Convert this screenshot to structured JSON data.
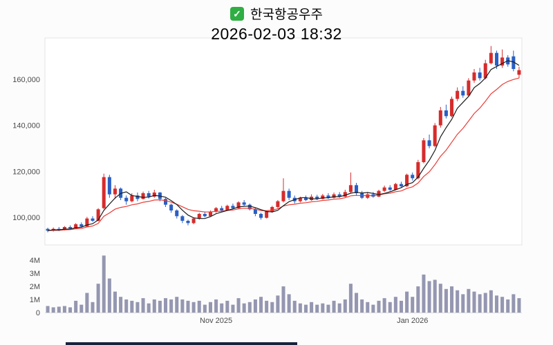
{
  "title": {
    "checkbox_state": "checked",
    "stock_name": "한국항공우주",
    "datetime": "2026-02-03 18:32"
  },
  "colors": {
    "up": "#d62c2c",
    "down": "#2a5fc4",
    "volume": "#9597b1",
    "ma_short": "#1a1a1a",
    "ma_long": "#ea3b34",
    "axis_text": "#4a4a4a",
    "plot_border": "#e3e3e3",
    "checkbox_green": "#2fae43",
    "bottom_strip": "#17223b",
    "plot_background": "#ffffff"
  },
  "chart_data": {
    "type": "candlestick_with_volume",
    "title": "한국항공우주",
    "timestamp": "2026-02-03 18:32",
    "legend_position": "none",
    "grid": false,
    "y_axis": {
      "ticks": [
        100000,
        120000,
        140000,
        160000
      ],
      "labels": [
        "100,000",
        "120,000",
        "140,000",
        "160,000"
      ],
      "min": 88000,
      "max": 178000
    },
    "volume_axis": {
      "ticks": [
        0,
        1,
        2,
        3,
        4
      ],
      "labels": [
        "0",
        "1M",
        "2M",
        "3M",
        "4M"
      ],
      "unit": "millions"
    },
    "x_axis": {
      "tick_indices": [
        30,
        65
      ],
      "tick_labels": [
        "Nov 2025",
        "Jan 2026"
      ]
    },
    "ma_short_window": 5,
    "ma_long_span": 12,
    "candle_format": [
      "open",
      "high",
      "low",
      "close",
      "volume_millions"
    ],
    "candles": [
      [
        95000,
        95500,
        93500,
        94200,
        0.5
      ],
      [
        94200,
        95600,
        93800,
        95000,
        0.4
      ],
      [
        95000,
        95800,
        94000,
        94500,
        0.45
      ],
      [
        94500,
        96200,
        94300,
        95800,
        0.5
      ],
      [
        95800,
        96500,
        94800,
        95200,
        0.4
      ],
      [
        95200,
        97500,
        95000,
        97000,
        0.9
      ],
      [
        97000,
        97800,
        95500,
        96000,
        0.6
      ],
      [
        96000,
        100200,
        95800,
        99500,
        1.5
      ],
      [
        99500,
        100500,
        98000,
        98500,
        0.8
      ],
      [
        98500,
        104000,
        98200,
        103500,
        2.2
      ],
      [
        104000,
        119000,
        103500,
        117500,
        4.35
      ],
      [
        117500,
        118500,
        108500,
        110000,
        2.6
      ],
      [
        110000,
        114000,
        108000,
        112500,
        1.6
      ],
      [
        112500,
        113000,
        107500,
        108500,
        1.2
      ],
      [
        108500,
        109500,
        105500,
        107000,
        1.0
      ],
      [
        107000,
        110500,
        106500,
        109500,
        0.9
      ],
      [
        109500,
        110800,
        107000,
        108000,
        0.8
      ],
      [
        108000,
        111200,
        107800,
        110500,
        1.1
      ],
      [
        110500,
        111500,
        108200,
        109000,
        0.7
      ],
      [
        109000,
        112000,
        108500,
        110800,
        1.0
      ],
      [
        110800,
        111000,
        107000,
        108000,
        0.9
      ],
      [
        108000,
        108500,
        104500,
        105500,
        1.1
      ],
      [
        105500,
        106000,
        102000,
        103000,
        1.0
      ],
      [
        103000,
        103500,
        99500,
        100500,
        1.2
      ],
      [
        100500,
        101000,
        97500,
        98500,
        1.0
      ],
      [
        98500,
        99000,
        96500,
        97500,
        0.9
      ],
      [
        97500,
        100000,
        97000,
        99500,
        0.8
      ],
      [
        99500,
        102000,
        99000,
        101500,
        0.9
      ],
      [
        101500,
        102500,
        100000,
        100500,
        0.6
      ],
      [
        100500,
        103000,
        100200,
        102500,
        0.8
      ],
      [
        102500,
        104500,
        102000,
        104000,
        1.0
      ],
      [
        104000,
        105000,
        102500,
        103000,
        0.7
      ],
      [
        103000,
        105500,
        102800,
        105000,
        0.9
      ],
      [
        105000,
        106000,
        103500,
        104000,
        0.6
      ],
      [
        104000,
        107000,
        103800,
        106500,
        1.1
      ],
      [
        106500,
        107500,
        105000,
        105500,
        0.7
      ],
      [
        105500,
        106000,
        103000,
        103500,
        0.8
      ],
      [
        103500,
        104000,
        100500,
        101500,
        1.0
      ],
      [
        101500,
        102000,
        99000,
        99800,
        1.2
      ],
      [
        99800,
        103000,
        99500,
        102500,
        0.9
      ],
      [
        102500,
        105000,
        102000,
        104500,
        0.8
      ],
      [
        104500,
        107500,
        104000,
        107000,
        1.3
      ],
      [
        107000,
        117000,
        106500,
        111500,
        2.0
      ],
      [
        111500,
        112500,
        107500,
        108500,
        1.4
      ],
      [
        108500,
        109500,
        106000,
        107000,
        0.9
      ],
      [
        107000,
        109000,
        106500,
        108500,
        0.7
      ],
      [
        108500,
        109500,
        107000,
        107500,
        0.6
      ],
      [
        107500,
        110000,
        107200,
        109000,
        0.8
      ],
      [
        109000,
        109800,
        107500,
        108000,
        0.6
      ],
      [
        108000,
        110200,
        107800,
        109500,
        0.7
      ],
      [
        109500,
        110500,
        108000,
        108500,
        0.6
      ],
      [
        108500,
        110800,
        108200,
        110000,
        0.9
      ],
      [
        110000,
        111000,
        108500,
        109000,
        0.7
      ],
      [
        109000,
        112000,
        108800,
        111000,
        1.0
      ],
      [
        111000,
        119500,
        110500,
        114000,
        2.2
      ],
      [
        114000,
        115000,
        109500,
        110500,
        1.5
      ],
      [
        110500,
        111500,
        108000,
        108500,
        1.0
      ],
      [
        108500,
        111000,
        108000,
        110000,
        0.8
      ],
      [
        110000,
        111000,
        108500,
        109000,
        0.6
      ],
      [
        109000,
        112000,
        108800,
        111500,
        0.9
      ],
      [
        111500,
        113800,
        111000,
        113000,
        1.1
      ],
      [
        113000,
        114000,
        111500,
        112000,
        0.8
      ],
      [
        112000,
        115000,
        111800,
        114500,
        1.2
      ],
      [
        114500,
        115500,
        113000,
        113500,
        0.9
      ],
      [
        113500,
        119000,
        113200,
        118500,
        1.6
      ],
      [
        118500,
        119500,
        116000,
        117000,
        1.2
      ],
      [
        117000,
        125000,
        116500,
        124000,
        2.0
      ],
      [
        124000,
        134500,
        123500,
        133500,
        2.9
      ],
      [
        133500,
        136000,
        130000,
        131000,
        2.4
      ],
      [
        131000,
        141000,
        130500,
        140000,
        2.5
      ],
      [
        140000,
        148000,
        139000,
        146500,
        2.2
      ],
      [
        146500,
        149000,
        143000,
        144000,
        1.8
      ],
      [
        144000,
        152500,
        143500,
        151500,
        2.0
      ],
      [
        151500,
        156500,
        150500,
        155000,
        1.7
      ],
      [
        155000,
        157000,
        152000,
        153000,
        1.4
      ],
      [
        153000,
        160500,
        152500,
        159500,
        1.8
      ],
      [
        159500,
        164500,
        158500,
        163000,
        1.6
      ],
      [
        163000,
        165000,
        159500,
        160500,
        1.4
      ],
      [
        160500,
        168500,
        160000,
        167000,
        1.5
      ],
      [
        167000,
        174500,
        166500,
        171500,
        1.7
      ],
      [
        171500,
        172500,
        164500,
        166000,
        1.3
      ],
      [
        166000,
        173000,
        165000,
        169500,
        1.2
      ],
      [
        169500,
        170500,
        165500,
        166500,
        1.0
      ],
      [
        170000,
        172500,
        163500,
        164500,
        1.4
      ],
      [
        162000,
        165500,
        160500,
        164000,
        1.1
      ]
    ]
  }
}
